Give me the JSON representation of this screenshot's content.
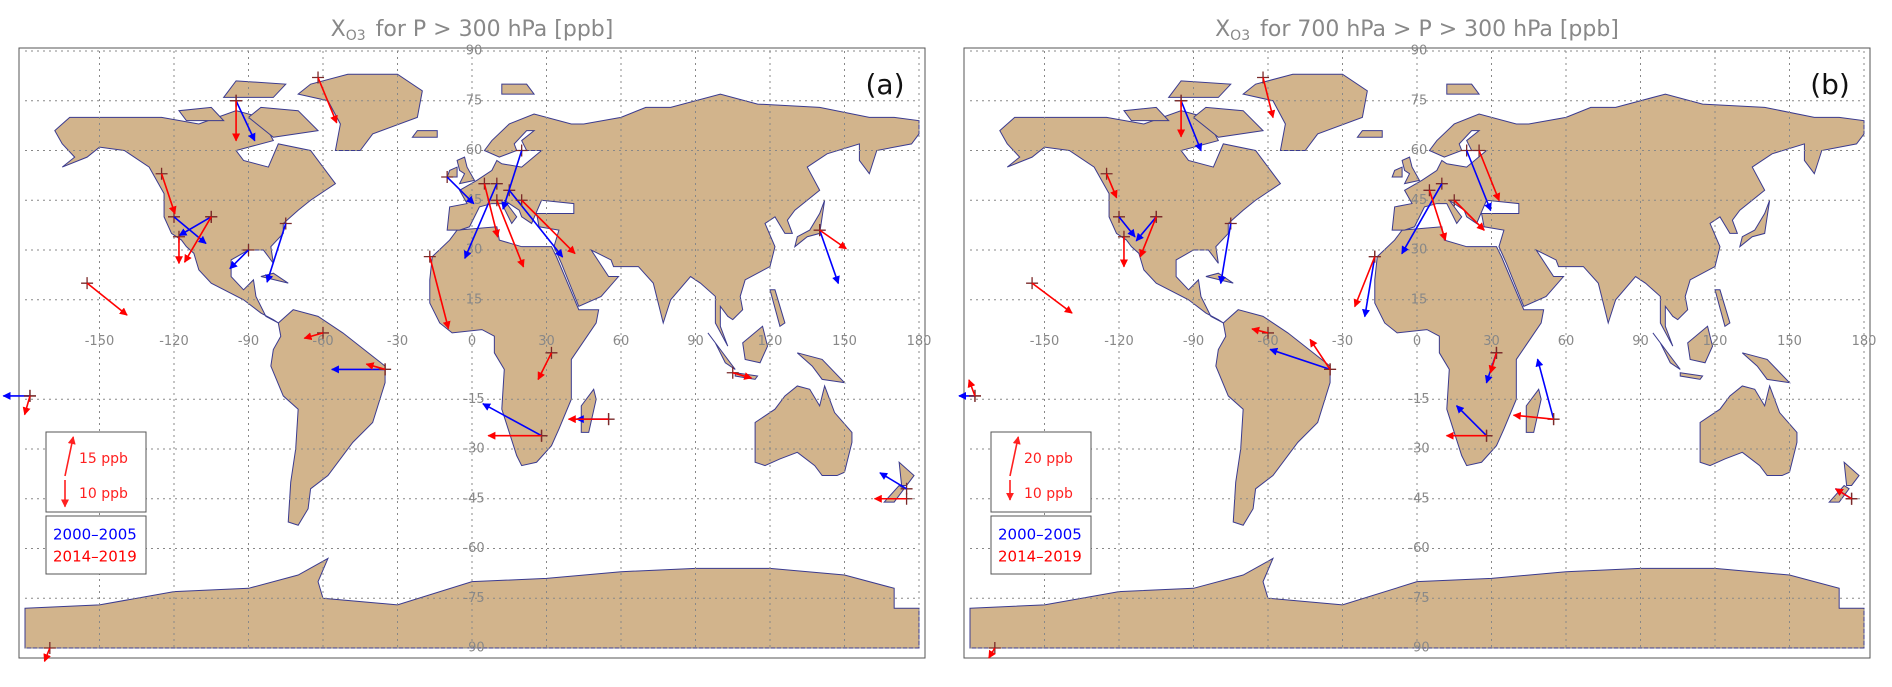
{
  "chart_data": [
    {
      "type": "vector-map",
      "title_symbol": "X",
      "title_subscript": "O3",
      "title": "for P > 300 hPa [ppb]",
      "panel_label": "(a)",
      "xlim": [
        -180,
        180
      ],
      "ylim": [
        -90,
        90
      ],
      "xticks": [
        -150,
        -120,
        -90,
        -60,
        -30,
        0,
        30,
        60,
        90,
        120,
        150,
        180
      ],
      "yticks": [
        90,
        75,
        60,
        45,
        30,
        15,
        -15,
        -30,
        -45,
        -60,
        -75,
        -90
      ],
      "grid": true,
      "key": [
        {
          "value": 15,
          "label": "15 ppb"
        },
        {
          "value": 10,
          "label": "10 ppb"
        }
      ],
      "key_color": "#ff2020",
      "series": [
        {
          "name": "2000–2005",
          "color": "#0000ff",
          "stations": [
            {
              "lon": -95,
              "lat": 75,
              "u": 7,
              "v": -15
            },
            {
              "lon": -120,
              "lat": 40,
              "u": 12,
              "v": -10
            },
            {
              "lon": -105,
              "lat": 40,
              "u": -12,
              "v": -7
            },
            {
              "lon": -90,
              "lat": 30,
              "u": -7,
              "v": -7
            },
            {
              "lon": -75,
              "lat": 38,
              "u": -7,
              "v": -22
            },
            {
              "lon": 10,
              "lat": 50,
              "u": -12,
              "v": -28
            },
            {
              "lon": 15,
              "lat": 48,
              "u": 20,
              "v": -25
            },
            {
              "lon": 20,
              "lat": 60,
              "u": -7,
              "v": -22
            },
            {
              "lon": -10,
              "lat": 52,
              "u": 10,
              "v": -10
            },
            {
              "lon": 28,
              "lat": -26,
              "u": -22,
              "v": 12
            },
            {
              "lon": 55,
              "lat": -21,
              "u": -12,
              "v": 0
            },
            {
              "lon": -35,
              "lat": -6,
              "u": -20,
              "v": 0
            },
            {
              "lon": 140,
              "lat": 36,
              "u": 7,
              "v": -20
            },
            {
              "lon": 175,
              "lat": -42,
              "u": -10,
              "v": 6
            },
            {
              "lon": -178,
              "lat": -14,
              "u": -10,
              "v": 0
            }
          ]
        },
        {
          "name": "2014–2019",
          "color": "#ff0000",
          "stations": [
            {
              "lon": -62,
              "lat": 82,
              "u": 7,
              "v": -17
            },
            {
              "lon": -95,
              "lat": 75,
              "u": 0,
              "v": -15
            },
            {
              "lon": -125,
              "lat": 53,
              "u": 5,
              "v": -15
            },
            {
              "lon": -105,
              "lat": 40,
              "u": -10,
              "v": -17
            },
            {
              "lon": -118,
              "lat": 34,
              "u": 0,
              "v": -10
            },
            {
              "lon": -155,
              "lat": 20,
              "u": 15,
              "v": -12
            },
            {
              "lon": 5,
              "lat": 50,
              "u": 5,
              "v": -20
            },
            {
              "lon": 10,
              "lat": 45,
              "u": 10,
              "v": -25
            },
            {
              "lon": 20,
              "lat": 45,
              "u": 20,
              "v": -20
            },
            {
              "lon": -17,
              "lat": 28,
              "u": 7,
              "v": -27
            },
            {
              "lon": 32,
              "lat": -1,
              "u": -5,
              "v": -10
            },
            {
              "lon": 28,
              "lat": -26,
              "u": -20,
              "v": 0
            },
            {
              "lon": 55,
              "lat": -21,
              "u": -15,
              "v": 0
            },
            {
              "lon": -60,
              "lat": 5,
              "u": -7,
              "v": -2
            },
            {
              "lon": -35,
              "lat": -6,
              "u": -7,
              "v": 2
            },
            {
              "lon": 140,
              "lat": 36,
              "u": 10,
              "v": -7
            },
            {
              "lon": 175,
              "lat": -45,
              "u": -12,
              "v": 0
            },
            {
              "lon": -178,
              "lat": -14,
              "u": -2,
              "v": -7
            },
            {
              "lon": -170,
              "lat": -90,
              "u": -2,
              "v": -5
            },
            {
              "lon": 105,
              "lat": -7,
              "u": 7,
              "v": -2
            }
          ]
        }
      ]
    },
    {
      "type": "vector-map",
      "title_symbol": "X",
      "title_subscript": "O3",
      "title": "for 700 hPa > P > 300 hPa [ppb]",
      "panel_label": "(b)",
      "xlim": [
        -180,
        180
      ],
      "ylim": [
        -90,
        90
      ],
      "xticks": [
        -150,
        -120,
        -90,
        -60,
        -30,
        0,
        30,
        60,
        90,
        120,
        150,
        180
      ],
      "yticks": [
        90,
        75,
        60,
        45,
        30,
        15,
        -15,
        -30,
        -45,
        -60,
        -75,
        -90
      ],
      "grid": true,
      "key": [
        {
          "value": 20,
          "label": "20 ppb"
        },
        {
          "value": 10,
          "label": "10 ppb"
        }
      ],
      "key_color": "#ff2020",
      "series": [
        {
          "name": "2000–2005",
          "color": "#0000ff",
          "stations": [
            {
              "lon": -95,
              "lat": 75,
              "u": 10,
              "v": -25
            },
            {
              "lon": -75,
              "lat": 38,
              "u": -5,
              "v": -30
            },
            {
              "lon": -105,
              "lat": 40,
              "u": -10,
              "v": -12
            },
            {
              "lon": -120,
              "lat": 40,
              "u": 8,
              "v": -10
            },
            {
              "lon": 10,
              "lat": 50,
              "u": -20,
              "v": -35
            },
            {
              "lon": 20,
              "lat": 60,
              "u": 12,
              "v": -30
            },
            {
              "lon": -17,
              "lat": 28,
              "u": -5,
              "v": -30
            },
            {
              "lon": -35,
              "lat": -6,
              "u": -30,
              "v": 10
            },
            {
              "lon": 28,
              "lat": -26,
              "u": -15,
              "v": 15
            },
            {
              "lon": 55,
              "lat": -21,
              "u": -8,
              "v": 30
            },
            {
              "lon": 32,
              "lat": -1,
              "u": -5,
              "v": -15
            },
            {
              "lon": -178,
              "lat": -14,
              "u": -8,
              "v": 0
            },
            {
              "lon": 175,
              "lat": -45,
              "u": -8,
              "v": 5
            }
          ]
        },
        {
          "name": "2014–2019",
          "color": "#ff0000",
          "stations": [
            {
              "lon": -62,
              "lat": 82,
              "u": 5,
              "v": -20
            },
            {
              "lon": -95,
              "lat": 75,
              "u": 0,
              "v": -18
            },
            {
              "lon": -125,
              "lat": 53,
              "u": 5,
              "v": -12
            },
            {
              "lon": -118,
              "lat": 34,
              "u": 0,
              "v": -15
            },
            {
              "lon": -105,
              "lat": 40,
              "u": -8,
              "v": -20
            },
            {
              "lon": -155,
              "lat": 20,
              "u": 20,
              "v": -15
            },
            {
              "lon": -17,
              "lat": 28,
              "u": -10,
              "v": -25
            },
            {
              "lon": 5,
              "lat": 48,
              "u": 8,
              "v": -25
            },
            {
              "lon": 15,
              "lat": 45,
              "u": 15,
              "v": -15
            },
            {
              "lon": 25,
              "lat": 60,
              "u": 10,
              "v": -25
            },
            {
              "lon": -60,
              "lat": 5,
              "u": -8,
              "v": 2
            },
            {
              "lon": -35,
              "lat": -6,
              "u": -10,
              "v": 15
            },
            {
              "lon": 28,
              "lat": -26,
              "u": -20,
              "v": 0
            },
            {
              "lon": 55,
              "lat": -21,
              "u": -20,
              "v": 2
            },
            {
              "lon": 175,
              "lat": -45,
              "u": -8,
              "v": 5
            },
            {
              "lon": -178,
              "lat": -14,
              "u": -3,
              "v": 8
            },
            {
              "lon": -170,
              "lat": -90,
              "u": -3,
              "v": -5
            },
            {
              "lon": 32,
              "lat": -1,
              "u": -3,
              "v": -10
            }
          ]
        }
      ]
    }
  ]
}
